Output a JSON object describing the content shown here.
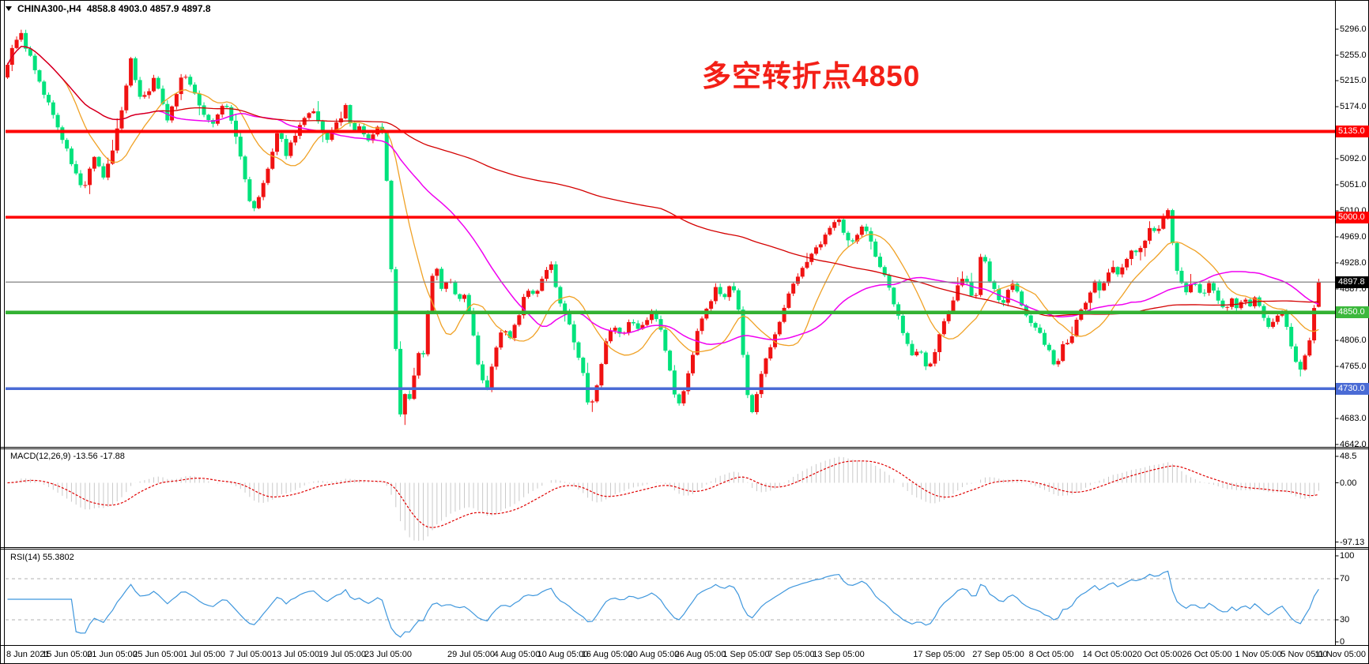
{
  "window": {
    "title_symbol": "CHINA300-,H4",
    "title_ohlc": "4858.8 4903.0 4857.9 4897.8"
  },
  "annotation": {
    "text": "多空转折点4850"
  },
  "colors": {
    "bull": "#f01212",
    "bear": "#00e27c",
    "ma_fast_orange": "#f0a125",
    "ma_mid_magenta": "#f000f0",
    "ma_slow_red": "#d40000",
    "level_red": "#fe0000",
    "level_green": "#33b133",
    "level_blue": "#4a6bd5",
    "current_price_gray": "#808080",
    "macd_histogram": "#c9c9c9",
    "macd_signal": "#e00000",
    "rsi_line": "#3f97dd",
    "rsi_levels_dash": "#b0b0b0"
  },
  "price_axis": {
    "ticks": [
      "5296.0",
      "5255.0",
      "5215.0",
      "5174.0",
      "5092.0",
      "5051.0",
      "5010.0",
      "4969.0",
      "4928.0",
      "4887.0",
      "4806.0",
      "4765.0",
      "4724.0",
      "4683.0",
      "4642.0"
    ],
    "badges": [
      {
        "label": "5135.0",
        "price": 5135.0,
        "bg": "#fe0000"
      },
      {
        "label": "5000.0",
        "price": 5000.0,
        "bg": "#fe0000"
      },
      {
        "label": "4897.8",
        "price": 4897.8,
        "bg": "#000000"
      },
      {
        "label": "4850.0",
        "price": 4850.0,
        "bg": "#3cb83c"
      },
      {
        "label": "4730.0",
        "price": 4730.0,
        "bg": "#4a6bd5"
      }
    ]
  },
  "time_axis": {
    "labels": [
      "8 Jun 2021",
      "15 Jun 05:00",
      "21 Jun 05:00",
      "25 Jun 05:00",
      "1 Jul 05:00",
      "7 Jul 05:00",
      "13 Jul 05:00",
      "19 Jul 05:00",
      "23 Jul 05:00",
      "29 Jul 05:00",
      "4 Aug 05:00",
      "10 Aug 05:00",
      "16 Aug 05:00",
      "20 Aug 05:00",
      "26 Aug 05:00",
      "1 Sep 05:00",
      "7 Sep 05:00",
      "13 Sep 05:00",
      "17 Sep 05:00",
      "27 Sep 05:00",
      "8 Oct 05:00",
      "14 Oct 05:00",
      "20 Oct 05:00",
      "26 Oct 05:00",
      "1 Nov 05:00",
      "5 Nov 05:00",
      "11 Nov 05:00"
    ]
  },
  "indicators": {
    "macd": {
      "label": "MACD(12,26,9) -13.56 -17.88",
      "params": [
        12,
        26,
        9
      ],
      "value": -13.56,
      "signal": -17.88,
      "scale": [
        "48.5",
        "0.00",
        "-97.13"
      ]
    },
    "rsi": {
      "label": "RSI(14) 55.3802",
      "period": 14,
      "value": 55.3802,
      "scale": [
        "100",
        "70",
        "30",
        "0"
      ],
      "levels": [
        70,
        30
      ]
    }
  },
  "chart_data": {
    "type": "candlestick",
    "symbol": "CHINA300-",
    "timeframe": "H4",
    "color_convention": "red = up, green = down",
    "last_bar": {
      "open": 4858.8,
      "high": 4903.0,
      "low": 4857.9,
      "close": 4897.8
    },
    "price_axis_visible_range": [
      4642.0,
      5296.0
    ],
    "current_price": 4897.8,
    "horizontal_levels": [
      {
        "price": 5135.0,
        "color": "#fe0000"
      },
      {
        "price": 5000.0,
        "color": "#fe0000"
      },
      {
        "price": 4897.8,
        "color": "#808080"
      },
      {
        "price": 4850.0,
        "color": "#33b133"
      },
      {
        "price": 4730.0,
        "color": "#4a6bd5"
      }
    ],
    "moving_averages": [
      {
        "name": "fast",
        "color": "#f0a125",
        "period": 13
      },
      {
        "name": "mid",
        "color": "#f000f0",
        "period": 34
      },
      {
        "name": "slow",
        "color": "#d40000",
        "period": 144
      }
    ],
    "close_waypoints": [
      [
        8,
        5240
      ],
      [
        25,
        5295
      ],
      [
        33,
        5262
      ],
      [
        40,
        5250
      ],
      [
        50,
        5210
      ],
      [
        60,
        5185
      ],
      [
        70,
        5150
      ],
      [
        80,
        5120
      ],
      [
        92,
        5080
      ],
      [
        105,
        5040
      ],
      [
        118,
        5095
      ],
      [
        132,
        5060
      ],
      [
        143,
        5110
      ],
      [
        155,
        5175
      ],
      [
        165,
        5250
      ],
      [
        172,
        5215
      ],
      [
        178,
        5185
      ],
      [
        188,
        5200
      ],
      [
        195,
        5218
      ],
      [
        205,
        5185
      ],
      [
        212,
        5155
      ],
      [
        222,
        5190
      ],
      [
        232,
        5230
      ],
      [
        242,
        5205
      ],
      [
        250,
        5180
      ],
      [
        260,
        5160
      ],
      [
        268,
        5145
      ],
      [
        277,
        5165
      ],
      [
        285,
        5180
      ],
      [
        293,
        5150
      ],
      [
        300,
        5120
      ],
      [
        310,
        5060
      ],
      [
        320,
        5005
      ],
      [
        330,
        5040
      ],
      [
        340,
        5080
      ],
      [
        352,
        5135
      ],
      [
        362,
        5100
      ],
      [
        375,
        5135
      ],
      [
        385,
        5155
      ],
      [
        397,
        5165
      ],
      [
        405,
        5140
      ],
      [
        412,
        5120
      ],
      [
        420,
        5135
      ],
      [
        428,
        5150
      ],
      [
        438,
        5175
      ],
      [
        446,
        5130
      ],
      [
        455,
        5145
      ],
      [
        463,
        5120
      ],
      [
        470,
        5125
      ],
      [
        478,
        5140
      ],
      [
        486,
        5135
      ],
      [
        492,
        4990
      ],
      [
        497,
        4870
      ],
      [
        503,
        4750
      ],
      [
        508,
        4665
      ],
      [
        514,
        4745
      ],
      [
        520,
        4700
      ],
      [
        527,
        4795
      ],
      [
        534,
        4765
      ],
      [
        542,
        4860
      ],
      [
        550,
        4930
      ],
      [
        558,
        4890
      ],
      [
        568,
        4905
      ],
      [
        578,
        4870
      ],
      [
        588,
        4880
      ],
      [
        598,
        4820
      ],
      [
        608,
        4750
      ],
      [
        616,
        4730
      ],
      [
        626,
        4790
      ],
      [
        636,
        4830
      ],
      [
        646,
        4810
      ],
      [
        656,
        4845
      ],
      [
        666,
        4885
      ],
      [
        676,
        4875
      ],
      [
        686,
        4900
      ],
      [
        696,
        4930
      ],
      [
        706,
        4870
      ],
      [
        716,
        4850
      ],
      [
        726,
        4800
      ],
      [
        736,
        4770
      ],
      [
        746,
        4690
      ],
      [
        756,
        4740
      ],
      [
        766,
        4800
      ],
      [
        776,
        4830
      ],
      [
        786,
        4810
      ],
      [
        796,
        4840
      ],
      [
        806,
        4820
      ],
      [
        816,
        4830
      ],
      [
        826,
        4850
      ],
      [
        836,
        4820
      ],
      [
        846,
        4770
      ],
      [
        856,
        4700
      ],
      [
        866,
        4730
      ],
      [
        876,
        4780
      ],
      [
        886,
        4840
      ],
      [
        896,
        4860
      ],
      [
        906,
        4890
      ],
      [
        916,
        4870
      ],
      [
        926,
        4900
      ],
      [
        934,
        4860
      ],
      [
        941,
        4770
      ],
      [
        950,
        4680
      ],
      [
        960,
        4740
      ],
      [
        975,
        4800
      ],
      [
        990,
        4850
      ],
      [
        1005,
        4900
      ],
      [
        1020,
        4930
      ],
      [
        1040,
        4960
      ],
      [
        1060,
        5005
      ],
      [
        1068,
        4975
      ],
      [
        1076,
        4955
      ],
      [
        1084,
        4970
      ],
      [
        1092,
        4990
      ],
      [
        1100,
        4965
      ],
      [
        1108,
        4940
      ],
      [
        1116,
        4915
      ],
      [
        1124,
        4890
      ],
      [
        1132,
        4860
      ],
      [
        1140,
        4830
      ],
      [
        1148,
        4800
      ],
      [
        1156,
        4780
      ],
      [
        1164,
        4795
      ],
      [
        1172,
        4760
      ],
      [
        1180,
        4775
      ],
      [
        1188,
        4810
      ],
      [
        1196,
        4840
      ],
      [
        1204,
        4865
      ],
      [
        1212,
        4890
      ],
      [
        1220,
        4905
      ],
      [
        1228,
        4880
      ],
      [
        1236,
        4880
      ],
      [
        1243,
        4965
      ],
      [
        1250,
        4900
      ],
      [
        1258,
        4885
      ],
      [
        1266,
        4860
      ],
      [
        1274,
        4880
      ],
      [
        1282,
        4895
      ],
      [
        1290,
        4870
      ],
      [
        1298,
        4850
      ],
      [
        1306,
        4830
      ],
      [
        1314,
        4820
      ],
      [
        1322,
        4800
      ],
      [
        1330,
        4780
      ],
      [
        1336,
        4760
      ],
      [
        1345,
        4800
      ],
      [
        1352,
        4800
      ],
      [
        1360,
        4830
      ],
      [
        1368,
        4855
      ],
      [
        1376,
        4870
      ],
      [
        1384,
        4900
      ],
      [
        1392,
        4880
      ],
      [
        1400,
        4905
      ],
      [
        1408,
        4920
      ],
      [
        1416,
        4910
      ],
      [
        1424,
        4935
      ],
      [
        1432,
        4950
      ],
      [
        1440,
        4940
      ],
      [
        1448,
        4965
      ],
      [
        1456,
        4985
      ],
      [
        1464,
        4975
      ],
      [
        1471,
        4995
      ],
      [
        1478,
        5008
      ],
      [
        1484,
        4950
      ],
      [
        1491,
        4905
      ],
      [
        1500,
        4880
      ],
      [
        1510,
        4905
      ],
      [
        1520,
        4875
      ],
      [
        1530,
        4895
      ],
      [
        1540,
        4870
      ],
      [
        1550,
        4850
      ],
      [
        1558,
        4875
      ],
      [
        1566,
        4855
      ],
      [
        1574,
        4875
      ],
      [
        1582,
        4860
      ],
      [
        1590,
        4875
      ],
      [
        1598,
        4845
      ],
      [
        1606,
        4825
      ],
      [
        1614,
        4845
      ],
      [
        1622,
        4855
      ],
      [
        1630,
        4815
      ],
      [
        1638,
        4775
      ],
      [
        1646,
        4758
      ],
      [
        1653,
        4790
      ],
      [
        1659,
        4812
      ],
      [
        1664,
        4857
      ],
      [
        1668,
        4898
      ]
    ]
  }
}
